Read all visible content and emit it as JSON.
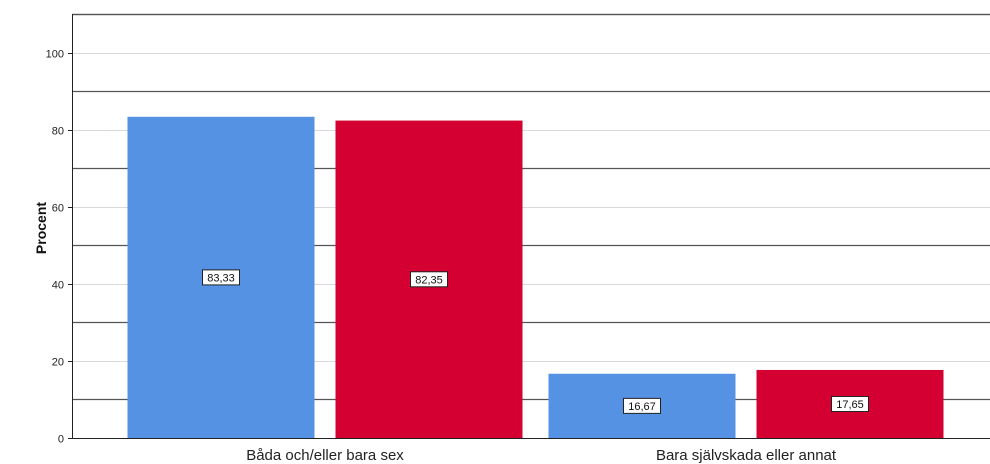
{
  "chart_data": {
    "type": "bar",
    "categories": [
      "Båda och/eller bara sex",
      "Bara självskada eller annat"
    ],
    "series": [
      {
        "values": [
          83.33,
          16.67
        ],
        "labels": [
          "83,33",
          "16,67"
        ],
        "color": "#5592e3"
      },
      {
        "values": [
          82.35,
          17.65
        ],
        "labels": [
          "82,35",
          "17,65"
        ],
        "color": "#d40032"
      }
    ],
    "ylabel": "Procent",
    "ylim": [
      0,
      110
    ],
    "yticks": [
      0,
      20,
      40,
      60,
      80,
      100
    ],
    "ytick_labels": [
      "0",
      "20",
      "40",
      "60",
      "80",
      "100"
    ],
    "grid": true,
    "grid_colors": {
      "light": "#d9d9d9",
      "dark": "#555555"
    },
    "axis_color": "#222222"
  }
}
